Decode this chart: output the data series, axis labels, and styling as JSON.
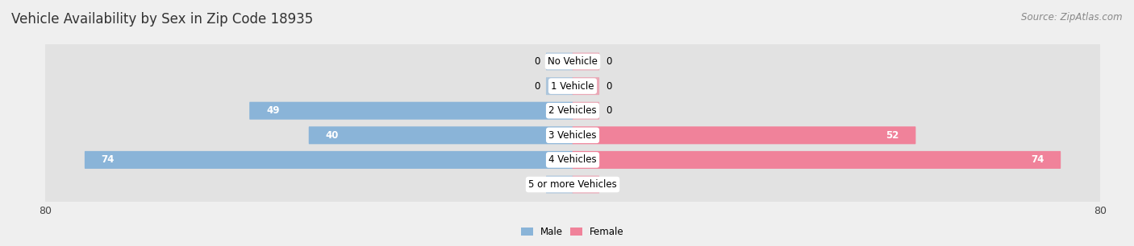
{
  "title": "Vehicle Availability by Sex in Zip Code 18935",
  "source": "Source: ZipAtlas.com",
  "categories": [
    "No Vehicle",
    "1 Vehicle",
    "2 Vehicles",
    "3 Vehicles",
    "4 Vehicles",
    "5 or more Vehicles"
  ],
  "male_values": [
    0,
    0,
    49,
    40,
    74,
    0
  ],
  "female_values": [
    0,
    0,
    0,
    52,
    74,
    0
  ],
  "male_color": "#8ab4d8",
  "female_color": "#f0829a",
  "male_label": "Male",
  "female_label": "Female",
  "xlim": 80,
  "background_color": "#efefef",
  "bar_bg_color": "#e2e2e2",
  "title_fontsize": 12,
  "source_fontsize": 8.5,
  "label_fontsize": 8.5,
  "value_fontsize": 8.5
}
